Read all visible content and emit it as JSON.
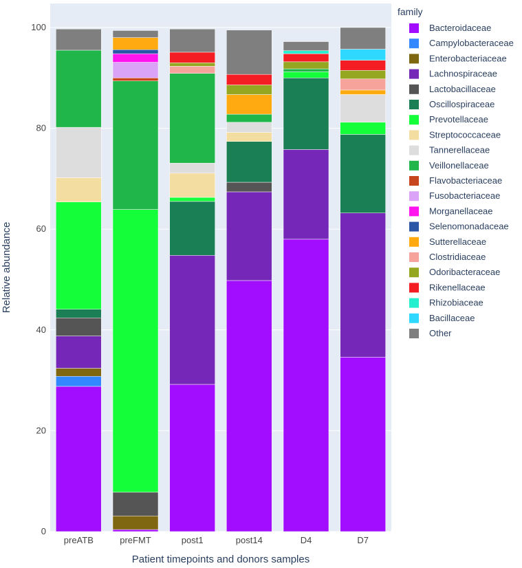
{
  "chart_data": {
    "type": "bar",
    "stacked": true,
    "xlabel": "Patient timepoints and donors samples",
    "ylabel": "Relative abundance",
    "ylim": [
      0,
      100
    ],
    "yticks": [
      0,
      20,
      40,
      60,
      80,
      100
    ],
    "legend_title": "family",
    "legend_position": "right",
    "categories": [
      "preATB",
      "preFMT",
      "post1",
      "post14",
      "D4",
      "D7"
    ],
    "series": [
      {
        "name": "Bacteroidaceae",
        "color": "#A20CFF",
        "values": [
          28.8,
          0.4,
          29.2,
          49.8,
          58.0,
          34.6
        ]
      },
      {
        "name": "Campylobacteraceae",
        "color": "#3388FF",
        "values": [
          2.0,
          0.0,
          0.0,
          0.0,
          0.0,
          0.0
        ]
      },
      {
        "name": "Enterobacteriaceae",
        "color": "#7F6610",
        "values": [
          1.6,
          2.7,
          0.0,
          0.0,
          0.0,
          0.0
        ]
      },
      {
        "name": "Lachnospiraceae",
        "color": "#7528B8",
        "values": [
          6.4,
          0.0,
          25.6,
          17.6,
          17.8,
          28.6
        ]
      },
      {
        "name": "Lactobacillaceae",
        "color": "#555555",
        "values": [
          3.6,
          4.7,
          0.0,
          1.9,
          0.0,
          0.0
        ]
      },
      {
        "name": "Oscillospiraceae",
        "color": "#1B7F55",
        "values": [
          1.7,
          0.0,
          10.7,
          8.1,
          14.2,
          15.6
        ]
      },
      {
        "name": "Prevotellaceae",
        "color": "#14FF3A",
        "values": [
          21.3,
          56.1,
          0.8,
          0.0,
          1.2,
          2.4
        ]
      },
      {
        "name": "Streptococcaceae",
        "color": "#F3DDA0",
        "values": [
          4.8,
          0.0,
          4.8,
          1.8,
          0.0,
          0.0
        ]
      },
      {
        "name": "Tannerellaceae",
        "color": "#DDDDDD",
        "values": [
          10.0,
          0.0,
          2.0,
          2.0,
          0.0,
          5.5
        ]
      },
      {
        "name": "Veillonellaceae",
        "color": "#20B64A",
        "values": [
          15.3,
          25.5,
          17.8,
          1.6,
          0.6,
          0.0
        ]
      },
      {
        "name": "Flavobacteriaceae",
        "color": "#C8461E",
        "values": [
          0.0,
          0.6,
          0.0,
          0.0,
          0.0,
          0.0
        ]
      },
      {
        "name": "Fusobacteriaceae",
        "color": "#DAA3F7",
        "values": [
          0.0,
          3.1,
          0.0,
          0.0,
          0.0,
          0.0
        ]
      },
      {
        "name": "Morganellaceae",
        "color": "#FF14F0",
        "values": [
          0.0,
          1.7,
          0.0,
          0.0,
          0.0,
          0.0
        ]
      },
      {
        "name": "Selenomonadaceae",
        "color": "#2B56A6",
        "values": [
          0.0,
          0.8,
          0.0,
          0.0,
          0.0,
          0.0
        ]
      },
      {
        "name": "Sutterellaceae",
        "color": "#FFAA10",
        "values": [
          0.0,
          2.4,
          0.0,
          3.9,
          0.0,
          0.9
        ]
      },
      {
        "name": "Clostridiaceae",
        "color": "#F6A39C",
        "values": [
          0.0,
          0.0,
          1.4,
          0.0,
          0.0,
          2.2
        ]
      },
      {
        "name": "Odoribacteraceae",
        "color": "#95A621",
        "values": [
          0.0,
          0.0,
          0.7,
          1.9,
          1.4,
          1.7
        ]
      },
      {
        "name": "Rikenellaceae",
        "color": "#F41D24",
        "values": [
          0.0,
          0.0,
          2.1,
          2.1,
          1.6,
          2.0
        ]
      },
      {
        "name": "Rhizobiaceae",
        "color": "#24F0CF",
        "values": [
          0.0,
          0.0,
          0.0,
          0.0,
          0.6,
          0.0
        ]
      },
      {
        "name": "Bacillaceae",
        "color": "#2FD8FF",
        "values": [
          0.0,
          0.0,
          0.0,
          0.0,
          0.0,
          2.2
        ]
      },
      {
        "name": "Other",
        "color": "#7F7F7F",
        "values": [
          4.2,
          1.4,
          4.6,
          8.8,
          1.8,
          4.3
        ]
      }
    ]
  }
}
